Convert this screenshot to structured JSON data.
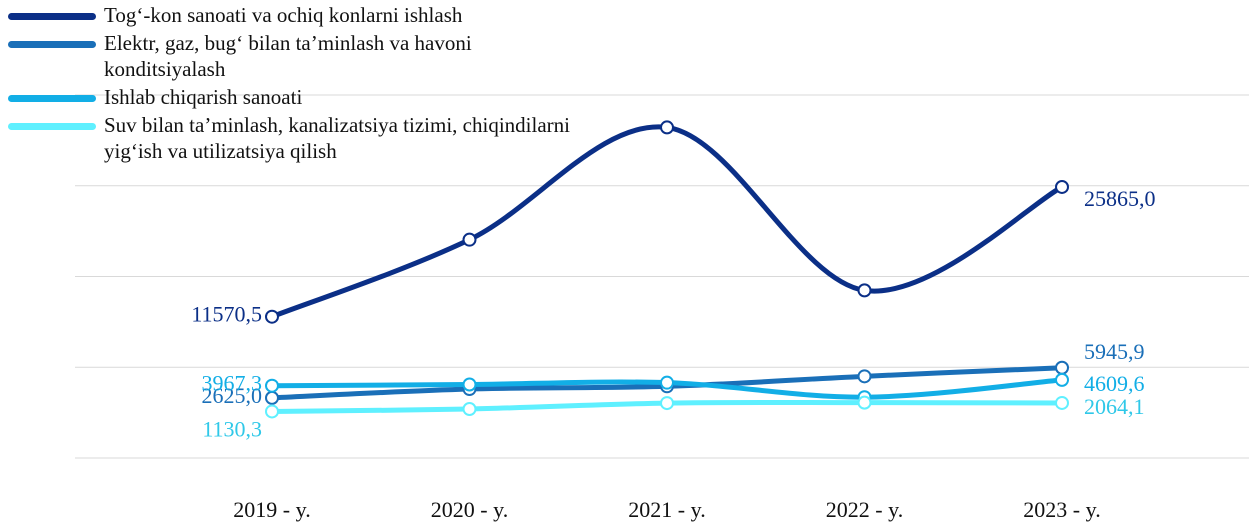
{
  "chart_data": {
    "type": "line",
    "categories": [
      "2019 - y.",
      "2020 - y.",
      "2021 - y.",
      "2022 - y.",
      "2023 - y."
    ],
    "series": [
      {
        "name": "Tog‘-kon sanoati va ochiq konlarni ishlash",
        "color": "#0b2f87",
        "values": [
          11570.5,
          20060,
          32430,
          14470,
          25865.0
        ],
        "value_labels": [
          "11570,5",
          null,
          null,
          null,
          "25865,0"
        ]
      },
      {
        "name": "Elektr, gaz, bug‘ bilan ta’minlash va havoni konditsiyalash",
        "color": "#1a6fb8",
        "values": [
          2625.0,
          3600,
          3900,
          5000,
          5945.9
        ],
        "value_labels": [
          "2625,0",
          null,
          null,
          null,
          "5945,9"
        ]
      },
      {
        "name": "Ishlab chiqarish sanoati",
        "color": "#12aee6",
        "values": [
          3967.3,
          4100,
          4300,
          2700,
          4609.6
        ],
        "value_labels": [
          "3967,3",
          null,
          null,
          null,
          "4609,6"
        ]
      },
      {
        "name": "Suv bilan ta’minlash, kanalizatsiya tizimi, chiqindilarni yig‘ish va utilizatsiya qilish",
        "color": "#5ff0ff",
        "values": [
          1130.3,
          1400,
          2050,
          2100,
          2064.1
        ],
        "value_labels": [
          "1130,3",
          null,
          null,
          null,
          "2064,1"
        ]
      }
    ],
    "ylim": [
      -4000,
      36000
    ],
    "yticks": [
      -4000,
      6000,
      16000,
      26000,
      36000
    ],
    "grid": true,
    "legend": "top-left"
  }
}
